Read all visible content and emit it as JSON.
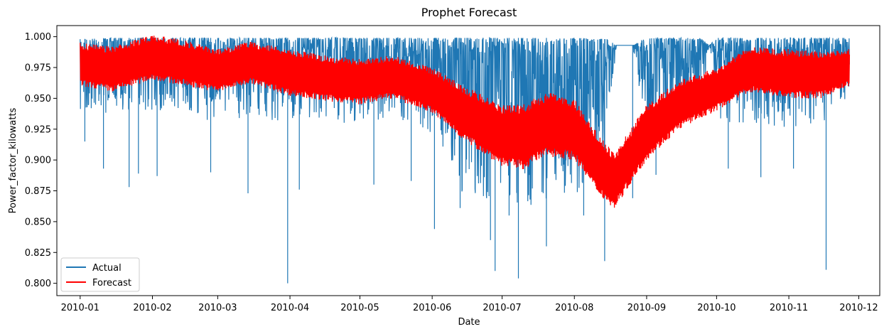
{
  "chart_data": {
    "type": "line",
    "title": "Prophet Forecast",
    "xlabel": "Date",
    "ylabel": "Power_factor_kilowatts",
    "x_range": [
      "2009-12-22",
      "2010-12-10"
    ],
    "ylim": [
      0.79,
      1.009
    ],
    "x_ticks": [
      "2010-01",
      "2010-02",
      "2010-03",
      "2010-04",
      "2010-05",
      "2010-06",
      "2010-07",
      "2010-08",
      "2010-09",
      "2010-10",
      "2010-11",
      "2010-12"
    ],
    "y_ticks": [
      "0.800",
      "0.825",
      "0.850",
      "0.875",
      "0.900",
      "0.925",
      "0.950",
      "0.975",
      "1.000"
    ],
    "grid": false,
    "legend_position": "lower-left",
    "series": [
      {
        "name": "Actual",
        "color": "#1f77b4",
        "x": [
          "2010-01-01",
          "2010-01-15",
          "2010-02-01",
          "2010-02-15",
          "2010-03-01",
          "2010-03-15",
          "2010-04-01",
          "2010-04-15",
          "2010-05-01",
          "2010-05-15",
          "2010-06-01",
          "2010-06-15",
          "2010-07-01",
          "2010-07-15",
          "2010-08-01",
          "2010-08-15",
          "2010-08-19",
          "2010-08-20",
          "2010-08-26",
          "2010-09-01",
          "2010-09-15",
          "2010-09-24",
          "2010-09-28",
          "2010-10-01",
          "2010-10-15",
          "2010-11-01",
          "2010-11-15",
          "2010-11-27"
        ],
        "upper": [
          0.998,
          0.999,
          0.999,
          0.999,
          0.999,
          0.999,
          0.999,
          0.999,
          0.999,
          0.999,
          0.999,
          0.999,
          0.999,
          0.999,
          0.999,
          0.998,
          0.993,
          0.993,
          0.993,
          0.999,
          0.999,
          0.999,
          0.993,
          0.999,
          0.999,
          0.999,
          0.999,
          0.999
        ],
        "lower": [
          0.93,
          0.94,
          0.94,
          0.935,
          0.93,
          0.935,
          0.93,
          0.93,
          0.925,
          0.935,
          0.92,
          0.87,
          0.86,
          0.86,
          0.87,
          0.9,
          0.993,
          0.993,
          0.993,
          0.91,
          0.925,
          0.94,
          0.993,
          0.93,
          0.93,
          0.925,
          0.93,
          0.95
        ],
        "spikes": [
          {
            "x": "2010-01-03",
            "y": 0.915
          },
          {
            "x": "2010-01-11",
            "y": 0.893
          },
          {
            "x": "2010-01-22",
            "y": 0.878
          },
          {
            "x": "2010-01-26",
            "y": 0.889
          },
          {
            "x": "2010-02-03",
            "y": 0.887
          },
          {
            "x": "2010-02-26",
            "y": 0.89
          },
          {
            "x": "2010-03-14",
            "y": 0.873
          },
          {
            "x": "2010-03-31",
            "y": 0.8
          },
          {
            "x": "2010-04-05",
            "y": 0.876
          },
          {
            "x": "2010-05-07",
            "y": 0.88
          },
          {
            "x": "2010-05-23",
            "y": 0.883
          },
          {
            "x": "2010-06-02",
            "y": 0.844
          },
          {
            "x": "2010-06-13",
            "y": 0.861
          },
          {
            "x": "2010-06-26",
            "y": 0.835
          },
          {
            "x": "2010-06-28",
            "y": 0.81
          },
          {
            "x": "2010-07-04",
            "y": 0.855
          },
          {
            "x": "2010-07-08",
            "y": 0.804
          },
          {
            "x": "2010-07-20",
            "y": 0.83
          },
          {
            "x": "2010-08-05",
            "y": 0.855
          },
          {
            "x": "2010-08-14",
            "y": 0.818
          },
          {
            "x": "2010-08-26",
            "y": 0.869
          },
          {
            "x": "2010-09-05",
            "y": 0.888
          },
          {
            "x": "2010-10-06",
            "y": 0.893
          },
          {
            "x": "2010-10-20",
            "y": 0.886
          },
          {
            "x": "2010-11-03",
            "y": 0.893
          },
          {
            "x": "2010-11-17",
            "y": 0.811
          }
        ]
      },
      {
        "name": "Forecast",
        "color": "#ff0000",
        "x": [
          "2010-01-01",
          "2010-01-15",
          "2010-02-01",
          "2010-02-15",
          "2010-03-01",
          "2010-03-15",
          "2010-04-01",
          "2010-04-15",
          "2010-05-01",
          "2010-05-15",
          "2010-06-01",
          "2010-06-15",
          "2010-07-01",
          "2010-07-10",
          "2010-07-20",
          "2010-08-01",
          "2010-08-10",
          "2010-08-18",
          "2010-09-01",
          "2010-09-15",
          "2010-10-01",
          "2010-10-15",
          "2010-11-01",
          "2010-11-15",
          "2010-11-27"
        ],
        "upper": [
          0.995,
          0.992,
          1.002,
          0.997,
          0.99,
          0.996,
          0.99,
          0.985,
          0.982,
          0.985,
          0.975,
          0.96,
          0.945,
          0.945,
          0.955,
          0.95,
          0.925,
          0.905,
          0.945,
          0.965,
          0.975,
          0.992,
          0.99,
          0.988,
          0.99
        ],
        "lower": [
          0.96,
          0.955,
          0.965,
          0.96,
          0.955,
          0.962,
          0.952,
          0.948,
          0.945,
          0.95,
          0.938,
          0.915,
          0.895,
          0.892,
          0.903,
          0.9,
          0.875,
          0.86,
          0.9,
          0.925,
          0.94,
          0.955,
          0.95,
          0.95,
          0.96
        ]
      }
    ]
  }
}
